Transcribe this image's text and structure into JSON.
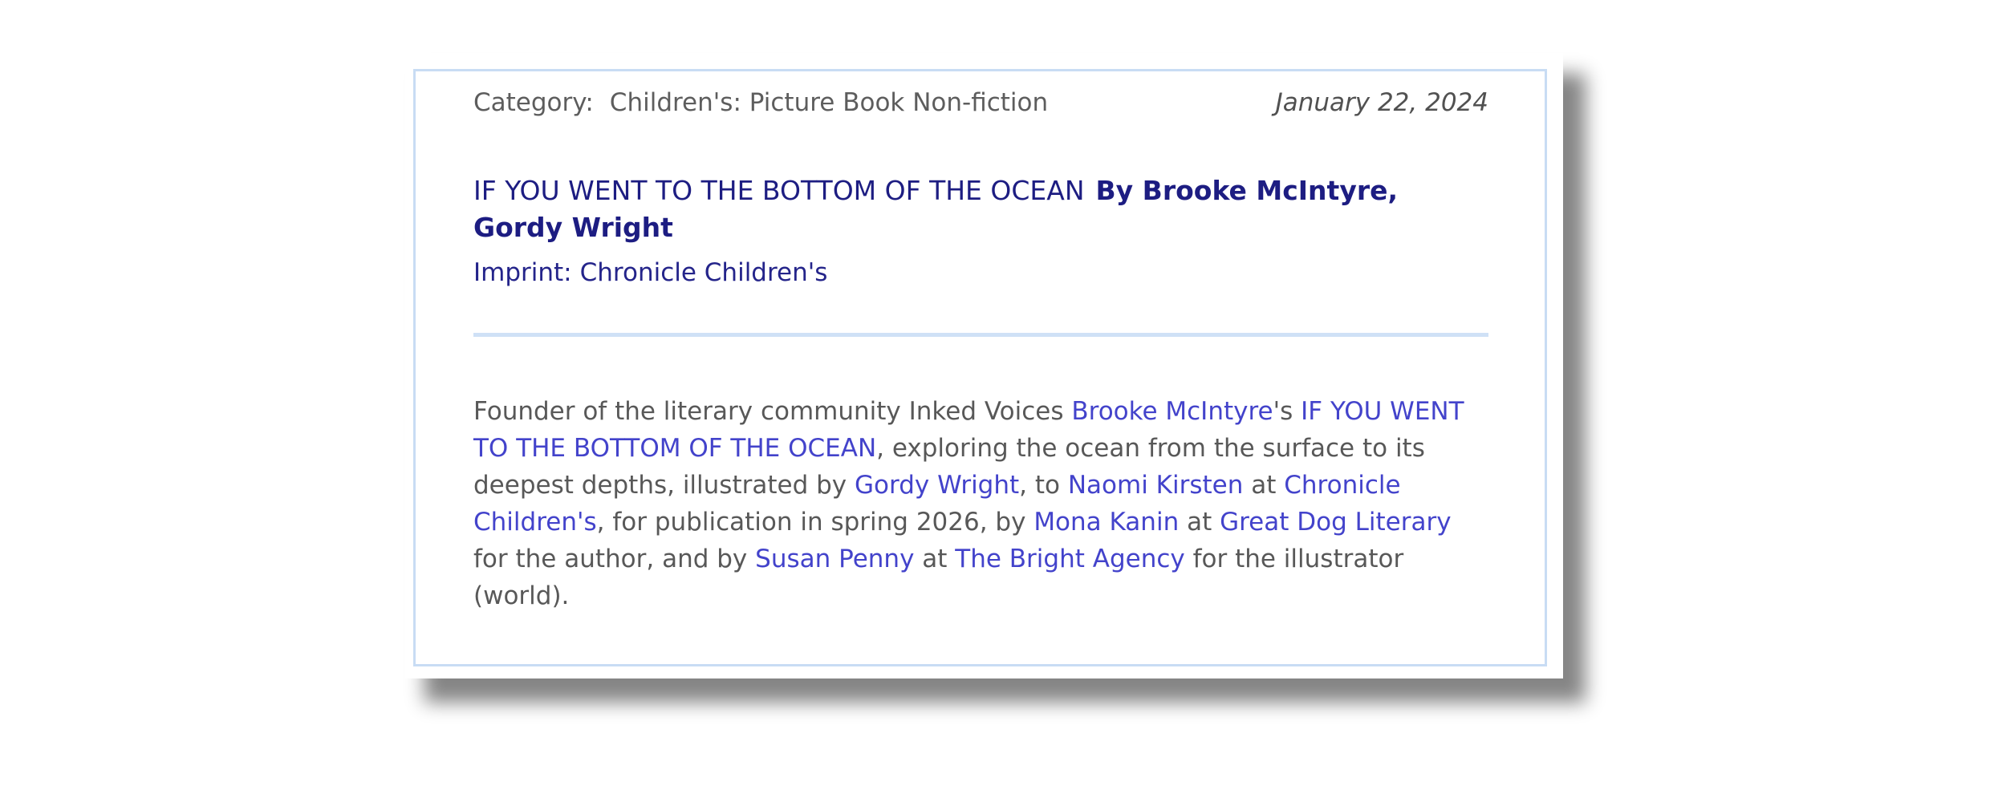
{
  "card": {
    "category_label": "Category:",
    "category_value": "Children's: Picture Book Non-fiction",
    "date": "January 22, 2024",
    "title": "IF YOU WENT TO THE BOTTOM OF THE OCEAN",
    "byline": "By Brooke McIntyre, Gordy Wright",
    "imprint_label": "Imprint:",
    "imprint_value": "Chronicle Children's"
  },
  "announcement": {
    "segments": [
      {
        "text": "Founder of the literary community Inked Voices ",
        "link": false
      },
      {
        "text": "Brooke McIntyre",
        "link": true
      },
      {
        "text": "'s ",
        "link": false
      },
      {
        "text": "IF YOU WENT TO THE BOTTOM OF THE OCEAN",
        "link": true
      },
      {
        "text": ", exploring the ocean from the surface to its deepest depths, illustrated by ",
        "link": false
      },
      {
        "text": "Gordy Wright",
        "link": true
      },
      {
        "text": ", to ",
        "link": false
      },
      {
        "text": "Naomi Kirsten",
        "link": true
      },
      {
        "text": " at ",
        "link": false
      },
      {
        "text": "Chronicle Children's",
        "link": true
      },
      {
        "text": ", for publication in spring 2026, by ",
        "link": false
      },
      {
        "text": "Mona Kanin",
        "link": true
      },
      {
        "text": " at ",
        "link": false
      },
      {
        "text": "Great Dog Literary",
        "link": true
      },
      {
        "text": " for the author, and by ",
        "link": false
      },
      {
        "text": "Susan Penny",
        "link": true
      },
      {
        "text": " at ",
        "link": false
      },
      {
        "text": "The Bright Agency",
        "link": true
      },
      {
        "text": " for the illustrator (world).",
        "link": false
      }
    ]
  },
  "colors": {
    "navy_title": "#1d1d82",
    "link_blue": "#4343cb",
    "body_gray": "#585858",
    "divider_blue": "#cfe1f6",
    "card_border_blue": "#c8dcf4",
    "shadow_gray": "rgba(0,0,0,0.48)"
  }
}
